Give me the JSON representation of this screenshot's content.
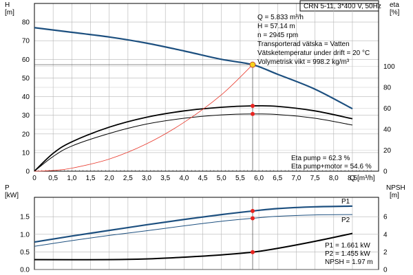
{
  "header": {
    "title": "CRN 5-11, 3*400 V, 50Hz"
  },
  "chart_data": [
    {
      "type": "line",
      "panel": "upper",
      "left_axis": {
        "label": "H",
        "unit": "[m]",
        "ticks": [
          0,
          10,
          20,
          30,
          40,
          50,
          60,
          70,
          80
        ],
        "range": [
          0,
          90
        ]
      },
      "right_axis": {
        "label": "eta",
        "unit": "[%]",
        "ticks": [
          0,
          20,
          40,
          60,
          80,
          100
        ],
        "range": [
          0,
          160
        ]
      },
      "x_axis": {
        "label": "Q",
        "unit": "[m³/h]",
        "ticks": [
          "0",
          "0,5",
          "1,0",
          "1,5",
          "2,0",
          "2,5",
          "3,0",
          "3,5",
          "4,0",
          "4,5",
          "5,0",
          "5,5",
          "6,0",
          "6,5",
          "7,0",
          "7,5",
          "8,0",
          "8,5"
        ],
        "range": [
          0,
          9.2
        ]
      },
      "grid": true,
      "series": [
        {
          "color": "#1c4f7f",
          "axis": "left",
          "points": [
            [
              0,
              77
            ],
            [
              1,
              74.5
            ],
            [
              2,
              72
            ],
            [
              3,
              68.7
            ],
            [
              4,
              64.5
            ],
            [
              5,
              60
            ],
            [
              5.833,
              57.14
            ],
            [
              6.5,
              52
            ],
            [
              7.5,
              44
            ],
            [
              8.5,
              33.5
            ]
          ]
        },
        {
          "color": "#000000",
          "axis": "right",
          "points": [
            [
              0,
              0
            ],
            [
              0.5,
              17
            ],
            [
              1,
              28
            ],
            [
              2,
              42
            ],
            [
              3,
              51.5
            ],
            [
              4,
              57.5
            ],
            [
              5,
              61
            ],
            [
              5.833,
              62.3
            ],
            [
              6.5,
              61.8
            ],
            [
              7.5,
              57.5
            ],
            [
              8.5,
              50
            ]
          ]
        },
        {
          "color": "#000000",
          "axis": "right",
          "points": [
            [
              0,
              0
            ],
            [
              0.5,
              14
            ],
            [
              1,
              24
            ],
            [
              2,
              36
            ],
            [
              3,
              45
            ],
            [
              4,
              50.5
            ],
            [
              5,
              53.7
            ],
            [
              5.833,
              54.6
            ],
            [
              6.5,
              54
            ],
            [
              7.5,
              50.5
            ],
            [
              8.5,
              44
            ]
          ]
        },
        {
          "color": "#e8382b",
          "axis": "left",
          "points": [
            [
              0,
              0
            ],
            [
              0.5,
              0.4
            ],
            [
              1,
              1.6
            ],
            [
              2,
              6.5
            ],
            [
              3,
              14.7
            ],
            [
              4,
              26.2
            ],
            [
              5,
              41
            ],
            [
              5.833,
              57.14
            ]
          ]
        }
      ],
      "duty_point": {
        "x": 5.833,
        "y": 57.14
      },
      "markers_right": [
        62.3,
        54.6
      ],
      "info_lines": [
        "Q = 5.833 m³/h",
        "H = 57.14 m",
        "n = 2945 rpm",
        "Transporterad vätska = Vatten",
        "Vätsketemperatur under drift = 20 °C",
        "Volymetrisk vikt = 998.2 kg/m³"
      ],
      "eff_lines": [
        "Eta pump = 62.3 %",
        "Eta pump+motor = 54.6 %"
      ]
    },
    {
      "type": "line",
      "panel": "lower",
      "left_axis": {
        "label": "P",
        "unit": "[kW]",
        "ticks": [
          "0.0",
          "0.5",
          "1.0",
          "1.5"
        ],
        "range": [
          0,
          2.05
        ]
      },
      "right_axis": {
        "label": "NPSH",
        "unit": "[m]",
        "ticks": [
          0,
          2,
          4,
          6
        ],
        "range": [
          0,
          8.2
        ]
      },
      "x_axis": {
        "range": [
          0,
          9.2
        ]
      },
      "grid": true,
      "series": [
        {
          "name": "P1",
          "color": "#1c4f7f",
          "axis": "left",
          "points": [
            [
              0,
              0.78
            ],
            [
              1,
              0.95
            ],
            [
              2,
              1.11
            ],
            [
              3,
              1.27
            ],
            [
              4,
              1.42
            ],
            [
              5,
              1.56
            ],
            [
              5.833,
              1.661
            ],
            [
              6.5,
              1.73
            ],
            [
              7.5,
              1.78
            ],
            [
              8.5,
              1.8
            ]
          ]
        },
        {
          "name": "P2",
          "color": "#1c4f7f",
          "axis": "left",
          "points": [
            [
              0,
              0.66
            ],
            [
              1,
              0.82
            ],
            [
              2,
              0.97
            ],
            [
              3,
              1.1
            ],
            [
              4,
              1.24
            ],
            [
              5,
              1.37
            ],
            [
              5.833,
              1.455
            ],
            [
              6.5,
              1.51
            ],
            [
              7.5,
              1.55
            ],
            [
              8.5,
              1.56
            ]
          ]
        },
        {
          "color": "#000000",
          "axis": "right",
          "points": [
            [
              0,
              1.12
            ],
            [
              2,
              1.12
            ],
            [
              3,
              1.2
            ],
            [
              4,
              1.4
            ],
            [
              5,
              1.66
            ],
            [
              5.833,
              1.97
            ],
            [
              6.5,
              2.4
            ],
            [
              7.5,
              3.2
            ],
            [
              8.5,
              4.1
            ]
          ]
        }
      ],
      "duty_markers": [
        {
          "x": 5.833,
          "value": 1.661,
          "axis": "left"
        },
        {
          "x": 5.833,
          "value": 1.455,
          "axis": "left"
        },
        {
          "x": 5.833,
          "value": 1.97,
          "axis": "right"
        }
      ],
      "info_lines": [
        "P1 = 1.661 kW",
        "P2 = 1.455 kW",
        "NPSH = 1.97 m"
      ]
    }
  ]
}
